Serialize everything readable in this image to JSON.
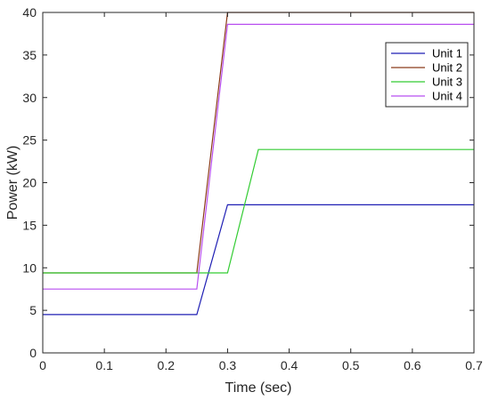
{
  "chart_data": {
    "type": "line",
    "title": "",
    "xlabel": "Time (sec)",
    "ylabel": "Power (kW)",
    "xlim": [
      0,
      0.7
    ],
    "ylim": [
      0,
      40
    ],
    "xticks": [
      0,
      0.1,
      0.2,
      0.3,
      0.4,
      0.5,
      0.6,
      0.7
    ],
    "xtick_labels": [
      "0",
      "0.1",
      "0.2",
      "0.3",
      "0.4",
      "0.5",
      "0.6",
      "0.7"
    ],
    "yticks": [
      0,
      5,
      10,
      15,
      20,
      25,
      30,
      35,
      40
    ],
    "ytick_labels": [
      "0",
      "5",
      "10",
      "15",
      "20",
      "25",
      "30",
      "35",
      "40"
    ],
    "grid": false,
    "legend_position": "top-right",
    "series": [
      {
        "name": "Unit 1",
        "color": "#1f1fb4",
        "x": [
          0,
          0.25,
          0.3,
          0.7
        ],
        "y": [
          4.5,
          4.5,
          17.4,
          17.4
        ]
      },
      {
        "name": "Unit 2",
        "color": "#8b3a1a",
        "x": [
          0,
          0.25,
          0.3,
          0.7
        ],
        "y": [
          9.4,
          9.4,
          40.0,
          40.0
        ]
      },
      {
        "name": "Unit 3",
        "color": "#33cc33",
        "x": [
          0,
          0.3,
          0.35,
          0.7
        ],
        "y": [
          9.4,
          9.4,
          23.9,
          23.9
        ]
      },
      {
        "name": "Unit 4",
        "color": "#b84ff0",
        "x": [
          0,
          0.25,
          0.3,
          0.7
        ],
        "y": [
          7.5,
          7.5,
          38.6,
          38.6
        ]
      }
    ]
  }
}
